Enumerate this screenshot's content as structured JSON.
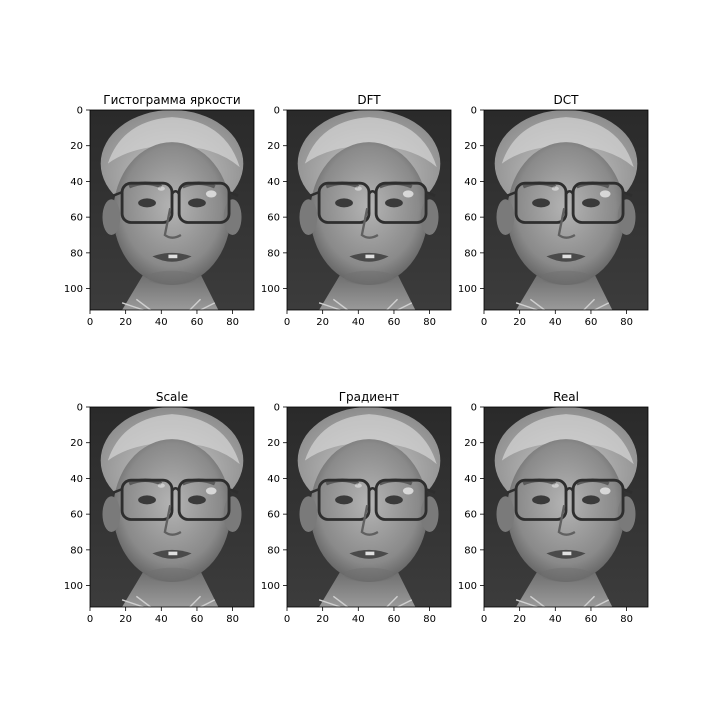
{
  "chart_data": [
    {
      "type": "image",
      "title": "Гистограмма яркости",
      "xticks": [
        "0",
        "20",
        "40",
        "60",
        "80"
      ],
      "yticks": [
        "0",
        "20",
        "40",
        "60",
        "80",
        "100"
      ],
      "xlim": [
        0,
        92
      ],
      "ylim": [
        112,
        0
      ]
    },
    {
      "type": "image",
      "title": "DFT",
      "xticks": [
        "0",
        "20",
        "40",
        "60",
        "80"
      ],
      "yticks": [
        "0",
        "20",
        "40",
        "60",
        "80",
        "100"
      ],
      "xlim": [
        0,
        92
      ],
      "ylim": [
        112,
        0
      ]
    },
    {
      "type": "image",
      "title": "DCT",
      "xticks": [
        "0",
        "20",
        "40",
        "60",
        "80"
      ],
      "yticks": [
        "0",
        "20",
        "40",
        "60",
        "80",
        "100"
      ],
      "xlim": [
        0,
        92
      ],
      "ylim": [
        112,
        0
      ]
    },
    {
      "type": "image",
      "title": "Scale",
      "xticks": [
        "0",
        "20",
        "40",
        "60",
        "80"
      ],
      "yticks": [
        "0",
        "20",
        "40",
        "60",
        "80",
        "100"
      ],
      "xlim": [
        0,
        92
      ],
      "ylim": [
        112,
        0
      ]
    },
    {
      "type": "image",
      "title": "Градиент",
      "xticks": [
        "0",
        "20",
        "40",
        "60",
        "80"
      ],
      "yticks": [
        "0",
        "20",
        "40",
        "60",
        "80",
        "100"
      ],
      "xlim": [
        0,
        92
      ],
      "ylim": [
        112,
        0
      ]
    },
    {
      "type": "image",
      "title": "Real",
      "xticks": [
        "0",
        "20",
        "40",
        "60",
        "80"
      ],
      "yticks": [
        "0",
        "20",
        "40",
        "60",
        "80",
        "100"
      ],
      "xlim": [
        0,
        92
      ],
      "ylim": [
        112,
        0
      ]
    }
  ]
}
